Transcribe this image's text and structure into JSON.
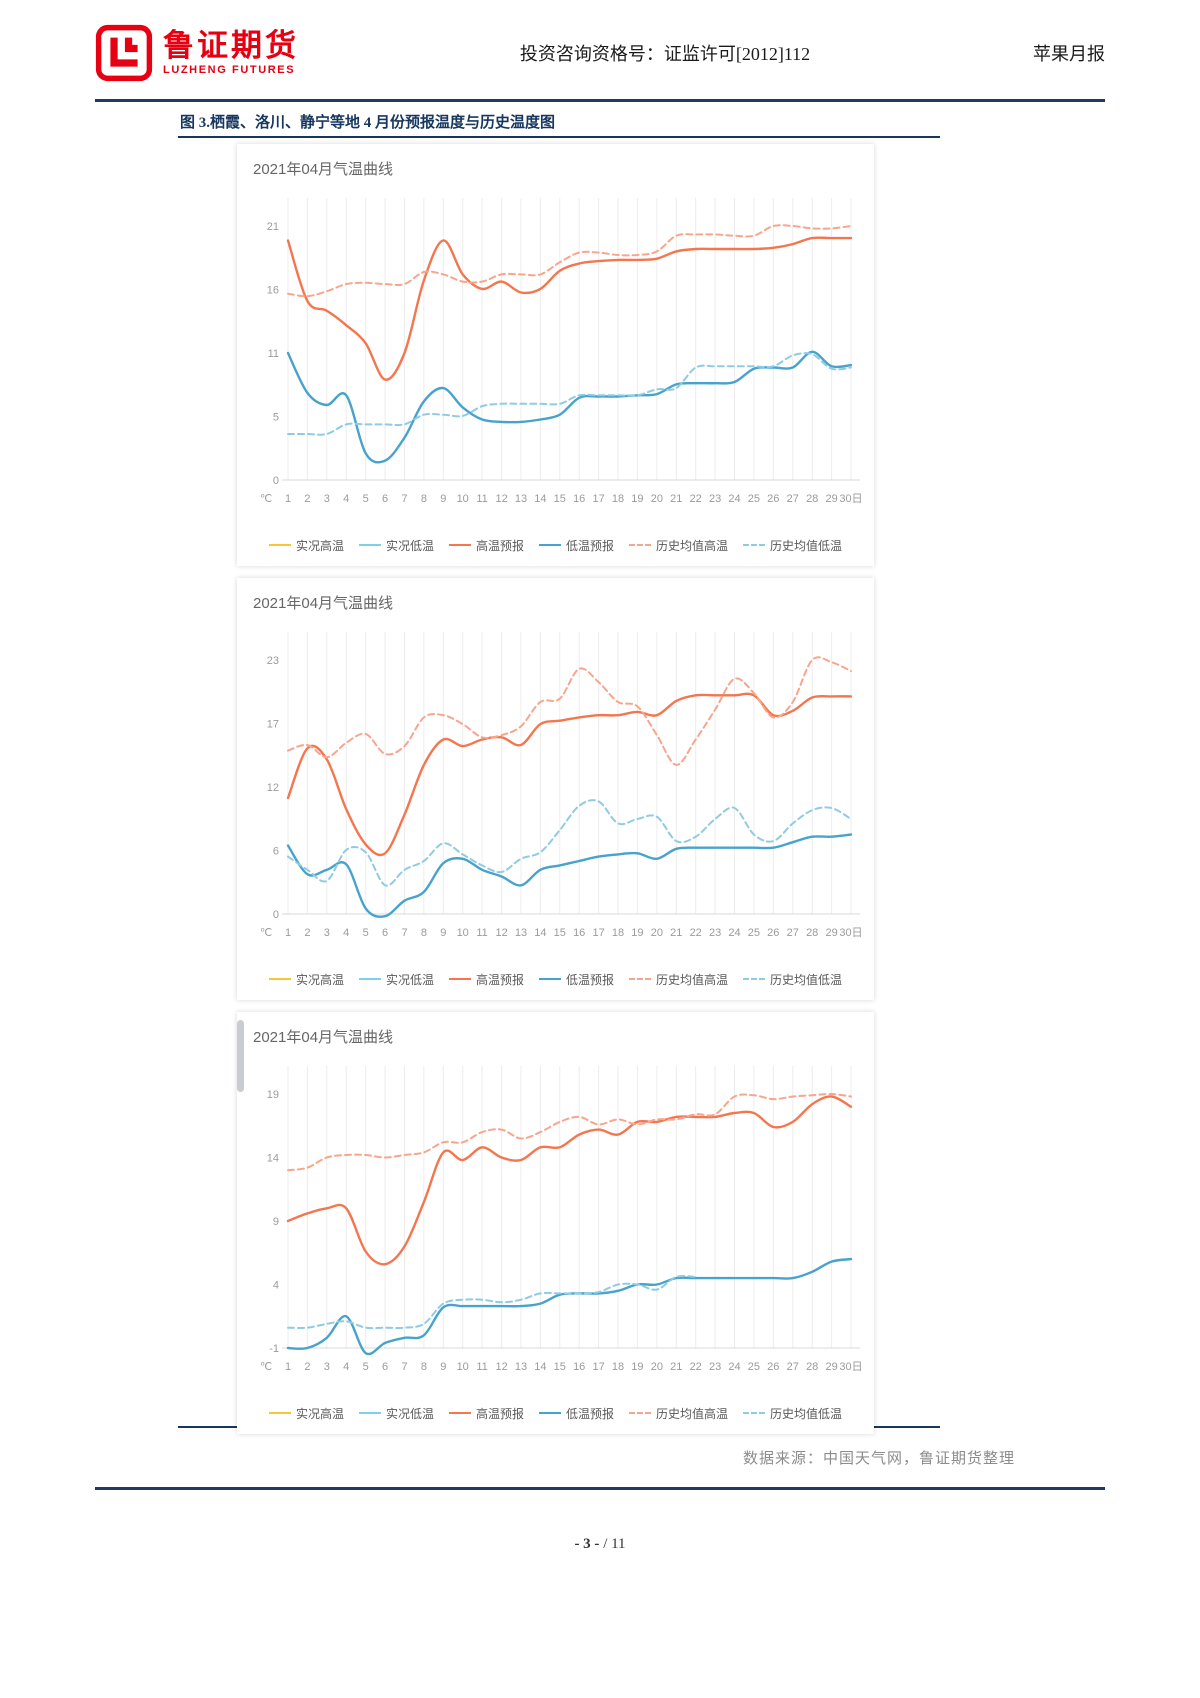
{
  "header": {
    "logo_cn": "鲁证期货",
    "logo_en": "LUZHENG FUTURES",
    "center": "投资咨询资格号：证监许可[2012]112",
    "right": "苹果月报"
  },
  "figure": {
    "caption": "图 3.栖霞、洛川、静宁等地 4 月份预报温度与历史温度图"
  },
  "footer": {
    "source": "数据来源：中国天气网，鲁证期货整理",
    "page_label": "- 3 -",
    "page_total": "/ 11"
  },
  "colors": {
    "navy_rule": "#1F3B63",
    "caption_navy": "#17375E",
    "logo_red": "#E60012",
    "grid": "#ececec",
    "axis_text": "#9b9b9b"
  },
  "chart_data": [
    {
      "type": "line",
      "title": "2021年04月气温曲线",
      "x_corner_label": "℃",
      "x_labels": [
        "1",
        "2",
        "3",
        "4",
        "5",
        "6",
        "7",
        "8",
        "9",
        "10",
        "11",
        "12",
        "13",
        "14",
        "15",
        "16",
        "17",
        "18",
        "19",
        "20",
        "21",
        "22",
        "23",
        "24",
        "25",
        "26",
        "27",
        "28",
        "29",
        "30日"
      ],
      "yticks": [
        21,
        16,
        11,
        5,
        0
      ],
      "ylim": [
        0,
        21
      ],
      "grid": true,
      "legend_position": "bottom",
      "series": [
        {
          "name": "实况高温",
          "color": "#F5C53A",
          "style": "solid",
          "values": []
        },
        {
          "name": "实况低温",
          "color": "#7ED0E8",
          "style": "solid",
          "values": []
        },
        {
          "name": "高温预报",
          "color": "#F4764F",
          "style": "solid",
          "values": [
            19.8,
            14.8,
            14.0,
            12.8,
            11.3,
            8.3,
            10.5,
            16.5,
            19.8,
            17.0,
            15.8,
            16.4,
            15.5,
            15.8,
            17.3,
            17.9,
            18.1,
            18.2,
            18.2,
            18.3,
            18.9,
            19.1,
            19.1,
            19.1,
            19.1,
            19.2,
            19.5,
            20.0,
            20.0,
            20.0
          ]
        },
        {
          "name": "低温预报",
          "color": "#47A3CC",
          "style": "solid",
          "values": [
            10.5,
            7.2,
            6.2,
            7.0,
            2.2,
            1.6,
            3.5,
            6.5,
            7.6,
            6.0,
            5.0,
            4.8,
            4.8,
            5.0,
            5.4,
            6.8,
            6.9,
            6.9,
            7.0,
            7.1,
            7.9,
            8.0,
            8.0,
            8.1,
            9.2,
            9.3,
            9.3,
            10.6,
            9.4,
            9.5
          ]
        },
        {
          "name": "历史均值高温",
          "color": "#F8A58E",
          "style": "dashed",
          "values": [
            15.4,
            15.2,
            15.6,
            16.2,
            16.3,
            16.2,
            16.2,
            17.2,
            17.0,
            16.4,
            16.4,
            17.0,
            17.0,
            17.0,
            18.0,
            18.8,
            18.8,
            18.6,
            18.6,
            18.9,
            20.2,
            20.3,
            20.3,
            20.2,
            20.2,
            21.0,
            21.0,
            20.8,
            20.8,
            21.0
          ]
        },
        {
          "name": "历史均值低温",
          "color": "#90CBE4",
          "style": "dashed",
          "values": [
            3.8,
            3.8,
            3.8,
            4.6,
            4.6,
            4.6,
            4.6,
            5.4,
            5.4,
            5.3,
            6.1,
            6.3,
            6.3,
            6.3,
            6.3,
            7.0,
            7.0,
            7.0,
            7.0,
            7.5,
            7.6,
            9.3,
            9.4,
            9.4,
            9.4,
            9.4,
            10.3,
            10.4,
            9.2,
            9.3
          ]
        }
      ]
    },
    {
      "type": "line",
      "title": "2021年04月气温曲线",
      "x_corner_label": "℃",
      "x_labels": [
        "1",
        "2",
        "3",
        "4",
        "5",
        "6",
        "7",
        "8",
        "9",
        "10",
        "11",
        "12",
        "13",
        "14",
        "15",
        "16",
        "17",
        "18",
        "19",
        "20",
        "21",
        "22",
        "23",
        "24",
        "25",
        "26",
        "27",
        "28",
        "29",
        "30日"
      ],
      "yticks": [
        23,
        17,
        12,
        6,
        0
      ],
      "ylim": [
        0,
        23
      ],
      "grid": true,
      "legend_position": "bottom",
      "series": [
        {
          "name": "实况高温",
          "color": "#F5C53A",
          "style": "solid",
          "values": []
        },
        {
          "name": "实况低温",
          "color": "#7ED0E8",
          "style": "solid",
          "values": []
        },
        {
          "name": "高温预报",
          "color": "#F4764F",
          "style": "solid",
          "values": [
            10.5,
            15.0,
            14.0,
            9.5,
            6.3,
            5.5,
            9.0,
            13.5,
            15.8,
            15.2,
            15.8,
            16.0,
            15.3,
            17.2,
            17.5,
            17.8,
            18.0,
            18.0,
            18.3,
            18.0,
            19.3,
            19.8,
            19.8,
            19.8,
            19.8,
            18.0,
            18.4,
            19.6,
            19.7,
            19.7
          ]
        },
        {
          "name": "低温预报",
          "color": "#47A3CC",
          "style": "solid",
          "values": [
            6.2,
            3.6,
            4.0,
            4.5,
            0.5,
            -0.2,
            1.2,
            2.0,
            4.6,
            5.0,
            4.0,
            3.4,
            2.6,
            4.0,
            4.4,
            4.8,
            5.2,
            5.4,
            5.5,
            5.0,
            5.9,
            6.0,
            6.0,
            6.0,
            6.0,
            6.0,
            6.5,
            7.0,
            7.0,
            7.2
          ]
        },
        {
          "name": "历史均值高温",
          "color": "#F8A58E",
          "style": "dashed",
          "values": [
            14.8,
            15.3,
            14.2,
            15.5,
            16.3,
            14.5,
            15.2,
            17.8,
            18.0,
            17.2,
            16.0,
            16.2,
            17.0,
            19.2,
            19.5,
            22.2,
            21.0,
            19.2,
            18.8,
            16.2,
            13.5,
            15.8,
            18.5,
            21.3,
            20.0,
            17.8,
            19.2,
            23.0,
            22.8,
            22.0
          ]
        },
        {
          "name": "历史均值低温",
          "color": "#90CBE4",
          "style": "dashed",
          "values": [
            5.2,
            4.0,
            3.0,
            5.8,
            5.6,
            2.6,
            4.0,
            4.8,
            6.4,
            5.4,
            4.4,
            3.8,
            5.0,
            5.6,
            7.6,
            9.8,
            10.2,
            8.2,
            8.6,
            8.8,
            6.6,
            7.0,
            8.6,
            9.6,
            7.2,
            6.6,
            8.2,
            9.4,
            9.6,
            8.6
          ]
        }
      ]
    },
    {
      "type": "line",
      "title": "2021年04月气温曲线",
      "x_corner_label": "℃",
      "x_labels": [
        "1",
        "2",
        "3",
        "4",
        "5",
        "6",
        "7",
        "8",
        "9",
        "10",
        "11",
        "12",
        "13",
        "14",
        "15",
        "16",
        "17",
        "18",
        "19",
        "20",
        "21",
        "22",
        "23",
        "24",
        "25",
        "26",
        "27",
        "28",
        "29",
        "30日"
      ],
      "yticks": [
        19,
        14,
        9,
        4,
        -1
      ],
      "ylim": [
        -1,
        19
      ],
      "grid": true,
      "legend_position": "bottom",
      "series": [
        {
          "name": "实况高温",
          "color": "#F5C53A",
          "style": "solid",
          "values": []
        },
        {
          "name": "实况低温",
          "color": "#7ED0E8",
          "style": "solid",
          "values": []
        },
        {
          "name": "高温预报",
          "color": "#F4764F",
          "style": "solid",
          "values": [
            9.0,
            9.6,
            10.0,
            10.0,
            6.6,
            5.6,
            7.0,
            10.5,
            14.4,
            13.8,
            14.8,
            14.0,
            13.8,
            14.8,
            14.8,
            15.8,
            16.2,
            15.8,
            16.8,
            16.8,
            17.2,
            17.2,
            17.2,
            17.5,
            17.5,
            16.4,
            16.8,
            18.2,
            18.8,
            18.0
          ]
        },
        {
          "name": "低温预报",
          "color": "#47A3CC",
          "style": "solid",
          "values": [
            -1.0,
            -1.0,
            -0.2,
            1.5,
            -1.4,
            -0.6,
            -0.2,
            0.0,
            2.2,
            2.3,
            2.3,
            2.3,
            2.3,
            2.5,
            3.2,
            3.3,
            3.3,
            3.5,
            4.0,
            4.0,
            4.5,
            4.5,
            4.5,
            4.5,
            4.5,
            4.5,
            4.5,
            5.0,
            5.8,
            6.0
          ]
        },
        {
          "name": "历史均值高温",
          "color": "#F8A58E",
          "style": "dashed",
          "values": [
            13.0,
            13.2,
            14.0,
            14.2,
            14.2,
            14.0,
            14.2,
            14.4,
            15.2,
            15.2,
            16.0,
            16.2,
            15.5,
            16.0,
            16.8,
            17.2,
            16.6,
            17.0,
            16.6,
            17.0,
            17.0,
            17.4,
            17.4,
            18.8,
            18.9,
            18.6,
            18.8,
            18.9,
            19.0,
            18.8
          ]
        },
        {
          "name": "历史均值低温",
          "color": "#90CBE4",
          "style": "dashed",
          "values": [
            0.6,
            0.6,
            0.9,
            1.1,
            0.6,
            0.6,
            0.6,
            0.9,
            2.5,
            2.8,
            2.8,
            2.6,
            2.8,
            3.3,
            3.3,
            3.3,
            3.4,
            4.0,
            4.0,
            3.6,
            4.6,
            4.6,
            null,
            null,
            null,
            null,
            null,
            null,
            null,
            null
          ]
        }
      ]
    }
  ]
}
